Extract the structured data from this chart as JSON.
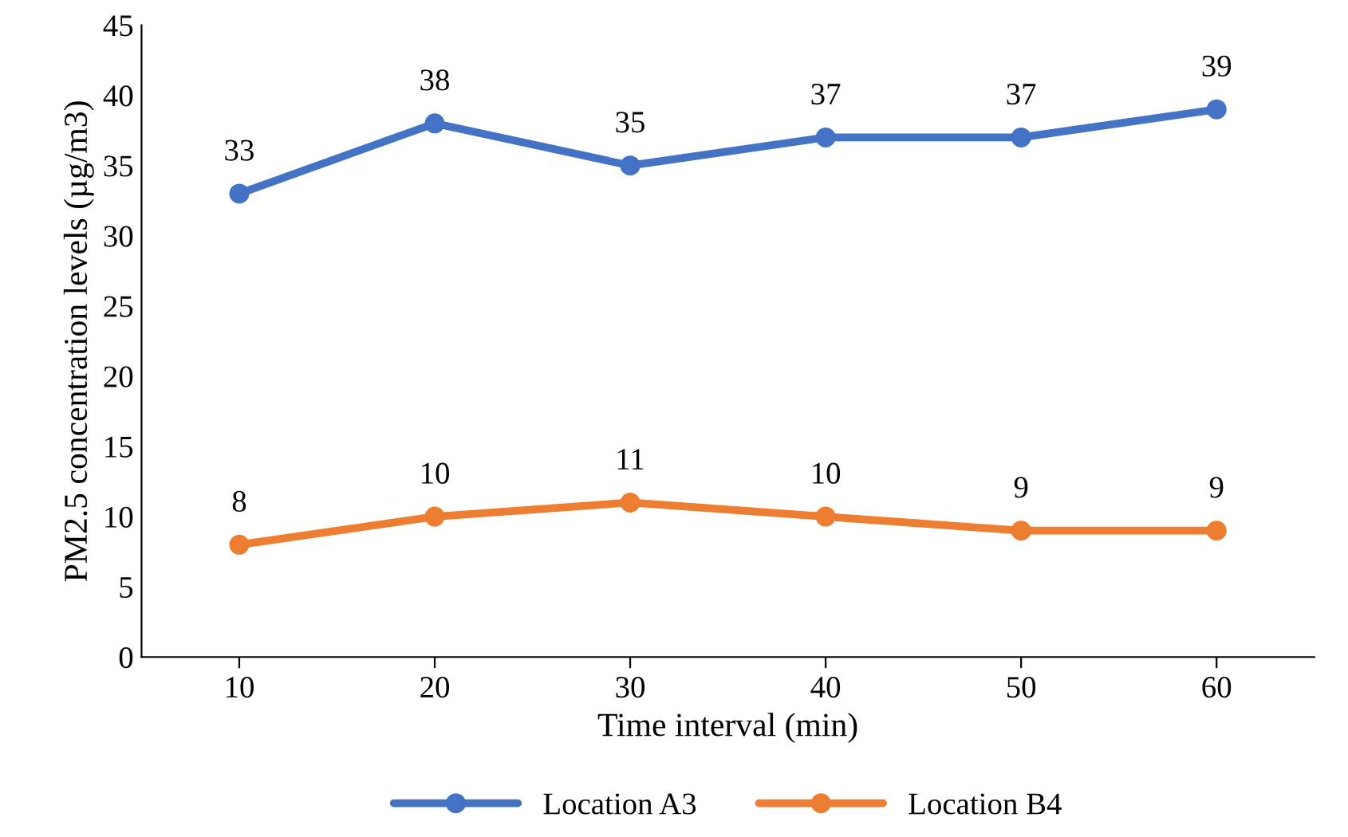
{
  "chart_data": {
    "type": "line",
    "xlabel": "Time interval (min)",
    "ylabel": "PM2.5 concentration levels (µg/m3)",
    "categories": [
      "10",
      "20",
      "30",
      "40",
      "50",
      "60"
    ],
    "series": [
      {
        "name": "Location A3",
        "color": "#4472c4",
        "values": [
          33,
          38,
          35,
          37,
          37,
          39
        ]
      },
      {
        "name": "Location B4",
        "color": "#ed7d31",
        "values": [
          8,
          10,
          11,
          10,
          9,
          9
        ]
      }
    ],
    "ylim": [
      0,
      45
    ],
    "yticks": [
      0,
      5,
      10,
      15,
      20,
      25,
      30,
      35,
      40,
      45
    ],
    "grid": false,
    "legend": "bottom",
    "marker": "circle",
    "line_style": "solid",
    "data_labels": true
  }
}
